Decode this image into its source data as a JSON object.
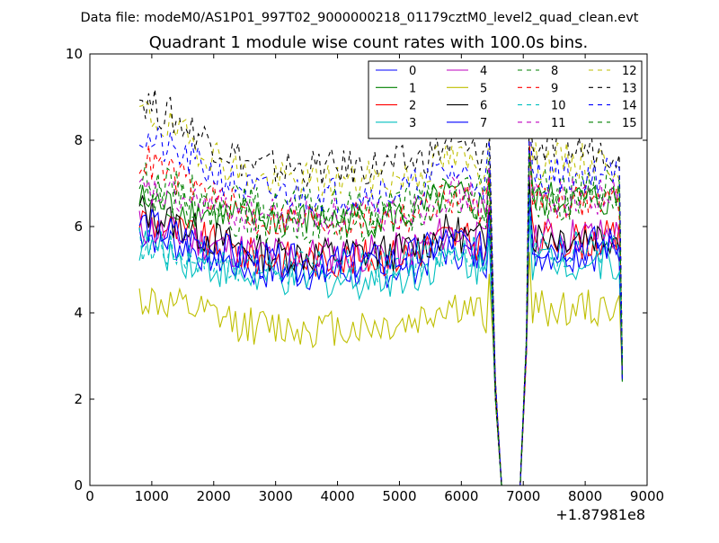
{
  "chart_data": {
    "type": "line",
    "suptitle": "Data file: modeM0/AS1P01_997T02_9000000218_01179cztM0_level2_quad_clean.evt",
    "title": "Quadrant 1 module wise count rates with 100.0s bins.",
    "xlabel": "",
    "ylabel": "",
    "x_offset_label": "+1.87981e8",
    "xlim": [
      0,
      9000
    ],
    "ylim": [
      0,
      10
    ],
    "xticks": [
      0,
      1000,
      2000,
      3000,
      4000,
      5000,
      6000,
      7000,
      8000,
      9000
    ],
    "yticks": [
      0,
      2,
      4,
      6,
      8,
      10
    ],
    "legend_location": "top-right",
    "legend_columns": 4,
    "series": [
      {
        "name": "0",
        "color": "#0000ff",
        "style": "solid",
        "level": 5.2,
        "start": 5.9
      },
      {
        "name": "1",
        "color": "#008000",
        "style": "solid",
        "level": 6.4,
        "start": 6.6
      },
      {
        "name": "2",
        "color": "#ff0000",
        "style": "solid",
        "level": 5.5,
        "start": 6.2
      },
      {
        "name": "3",
        "color": "#00bfbf",
        "style": "solid",
        "level": 5.0,
        "start": 5.6
      },
      {
        "name": "4",
        "color": "#bf00bf",
        "style": "solid",
        "level": 5.6,
        "start": 6.0
      },
      {
        "name": "5",
        "color": "#bfbf00",
        "style": "solid",
        "level": 3.9,
        "start": 4.35
      },
      {
        "name": "6",
        "color": "#000000",
        "style": "solid",
        "level": 5.6,
        "start": 6.4
      },
      {
        "name": "7",
        "color": "#0000ff",
        "style": "solid",
        "level": 5.4,
        "start": 6.1
      },
      {
        "name": "8",
        "color": "#008000",
        "style": "dashed",
        "level": 6.7,
        "start": 7.1
      },
      {
        "name": "9",
        "color": "#ff0000",
        "style": "dashed",
        "level": 6.4,
        "start": 7.6
      },
      {
        "name": "10",
        "color": "#00bfbf",
        "style": "dashed",
        "level": 5.3,
        "start": 5.6
      },
      {
        "name": "11",
        "color": "#bf00bf",
        "style": "dashed",
        "level": 6.5,
        "start": 6.8
      },
      {
        "name": "12",
        "color": "#bfbf00",
        "style": "dashed",
        "level": 7.3,
        "start": 8.7
      },
      {
        "name": "13",
        "color": "#000000",
        "style": "dashed",
        "level": 7.6,
        "start": 9.0
      },
      {
        "name": "14",
        "color": "#0000ff",
        "style": "dashed",
        "level": 7.0,
        "start": 8.1
      },
      {
        "name": "15",
        "color": "#008000",
        "style": "dashed",
        "level": 6.3,
        "start": 6.9
      }
    ],
    "time_segments": [
      {
        "x_start": 800,
        "x_end": 6400
      },
      {
        "x_start": 6450,
        "x_end": 6650,
        "shape": "drop-to-zero"
      },
      {
        "x_start": 6650,
        "x_end": 6950,
        "value": 0
      },
      {
        "x_start": 6950,
        "x_end": 7100,
        "shape": "rise-from-zero"
      },
      {
        "x_start": 7100,
        "x_end": 8550
      },
      {
        "x_start": 8550,
        "x_end": 8600,
        "shape": "final-drop",
        "value": 2.5
      }
    ],
    "bin_width_s": 100
  }
}
